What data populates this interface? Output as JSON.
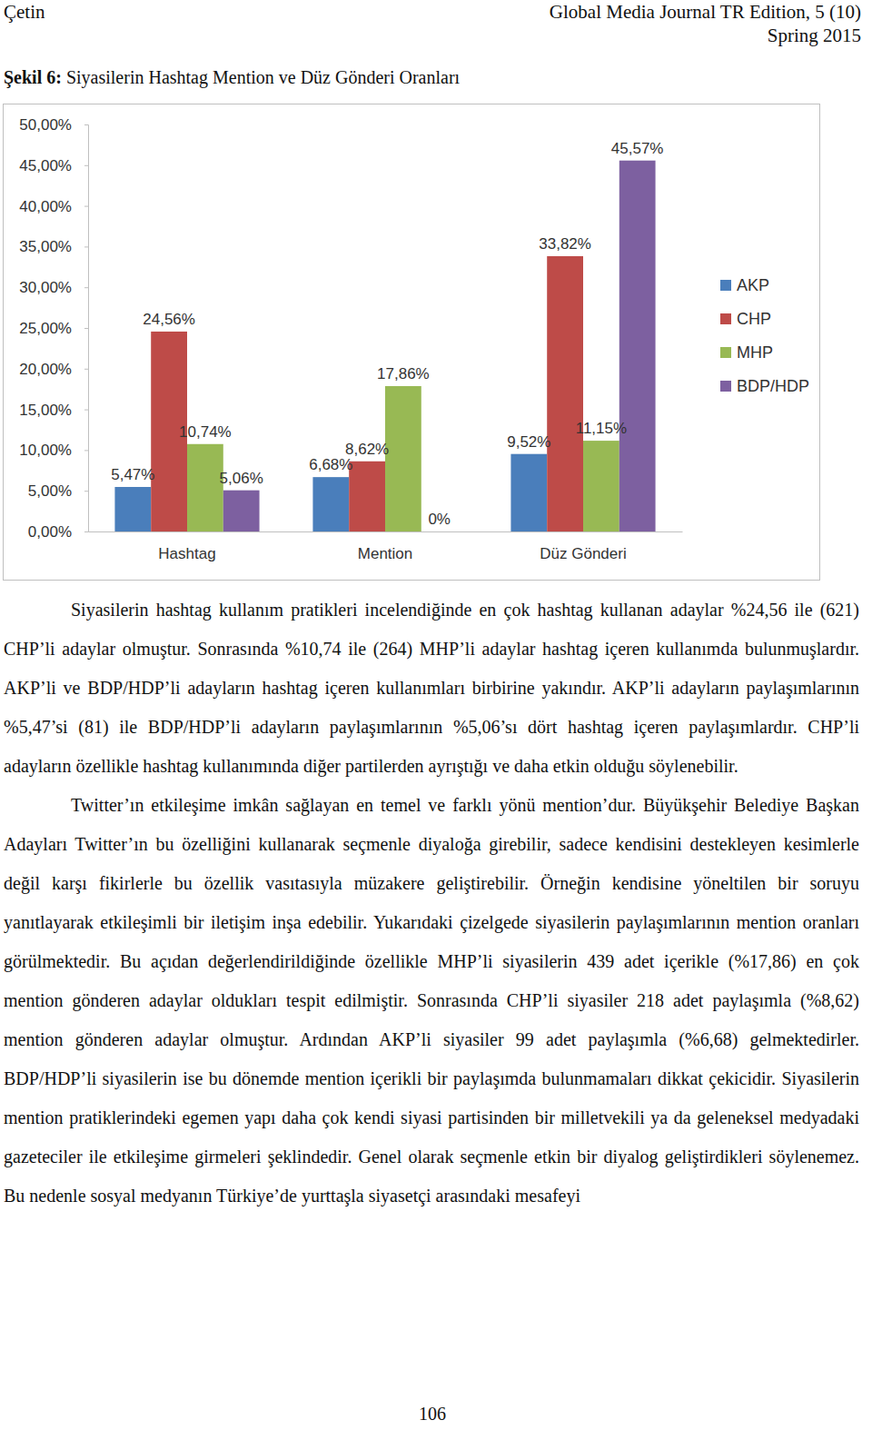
{
  "header": {
    "left": "Çetin",
    "right": [
      "Global Media Journal TR Edition, 5 (10)",
      "Spring 2015"
    ]
  },
  "caption": {
    "label": "Şekil 6:",
    "text": "Siyasilerin Hashtag Mention ve Düz Gönderi Oranları"
  },
  "chart_data": {
    "type": "bar",
    "categories": [
      "Hashtag",
      "Mention",
      "Düz Gönderi"
    ],
    "series": [
      {
        "name": "AKP",
        "color": "#4a7ebb",
        "values": [
          5.47,
          6.68,
          9.52
        ],
        "value_labels": [
          "5,47%",
          "6,68%",
          "9,52%"
        ]
      },
      {
        "name": "CHP",
        "color": "#be4b48",
        "values": [
          24.56,
          8.62,
          33.82
        ],
        "value_labels": [
          "24,56%",
          "8,62%",
          "33,82%"
        ]
      },
      {
        "name": "MHP",
        "color": "#98b954",
        "values": [
          10.74,
          17.86,
          11.15
        ],
        "value_labels": [
          "10,74%",
          "17,86%",
          "11,15%"
        ]
      },
      {
        "name": "BDP/HDP",
        "color": "#7d60a0",
        "values": [
          5.06,
          0,
          45.57
        ],
        "value_labels": [
          "5,06%",
          "0%",
          "45,57%"
        ]
      }
    ],
    "ylim": [
      0,
      50
    ],
    "yticks": [
      {
        "value": 0,
        "label": "0,00%"
      },
      {
        "value": 5,
        "label": "5,00%"
      },
      {
        "value": 10,
        "label": "10,00%"
      },
      {
        "value": 15,
        "label": "15,00%"
      },
      {
        "value": 20,
        "label": "20,00%"
      },
      {
        "value": 25,
        "label": "25,00%"
      },
      {
        "value": 30,
        "label": "30,00%"
      },
      {
        "value": 35,
        "label": "35,00%"
      },
      {
        "value": 40,
        "label": "40,00%"
      },
      {
        "value": 45,
        "label": "45,00%"
      },
      {
        "value": 50,
        "label": "50,00%"
      }
    ],
    "grid": false,
    "legend": "right",
    "data_labels": true
  },
  "paragraphs": [
    "Siyasilerin hashtag kullanım pratikleri incelendiğinde en çok hashtag kullanan adaylar %24,56 ile (621) CHP’li adaylar olmuştur. Sonrasında %10,74 ile (264) MHP’li adaylar hashtag içeren kullanımda bulunmuşlardır. AKP’li ve BDP/HDP’li adayların hashtag içeren kullanımları birbirine yakındır. AKP’li adayların paylaşımlarının %5,47’si (81) ile BDP/HDP’li adayların paylaşımlarının %5,06’sı dört hashtag içeren paylaşımlardır. CHP’li adayların özellikle hashtag kullanımında diğer partilerden ayrıştığı ve daha etkin olduğu söylenebilir.",
    "Twitter’ın etkileşime imkân sağlayan en temel ve farklı yönü mention’dur. Büyükşehir Belediye Başkan Adayları Twitter’ın bu özelliğini kullanarak seçmenle diyaloğa girebilir, sadece kendisini destekleyen kesimlerle değil karşı fikirlerle bu özellik vasıtasıyla müzakere geliştirebilir. Örneğin kendisine yöneltilen bir soruyu yanıtlayarak etkileşimli bir iletişim inşa edebilir. Yukarıdaki çizelgede siyasilerin paylaşımlarının mention oranları görülmektedir. Bu açıdan değerlendirildiğinde özellikle MHP’li siyasilerin 439 adet içerikle (%17,86) en çok mention gönderen adaylar oldukları tespit edilmiştir. Sonrasında CHP’li siyasiler 218 adet paylaşımla (%8,62) mention gönderen adaylar olmuştur. Ardından AKP’li siyasiler 99 adet paylaşımla (%6,68) gelmektedirler. BDP/HDP’li siyasilerin ise bu dönemde mention içerikli bir paylaşımda bulunmamaları dikkat çekicidir. Siyasilerin mention pratiklerindeki egemen yapı daha çok kendi siyasi partisinden bir milletvekili ya da geleneksel medyadaki gazeteciler ile etkileşime girmeleri şeklindedir. Genel olarak seçmenle etkin bir diyalog geliştirdikleri söylenemez. Bu nedenle sosyal medyanın Türkiye’de yurttaşla siyasetçi arasındaki mesafeyi"
  ],
  "page_number": "106"
}
